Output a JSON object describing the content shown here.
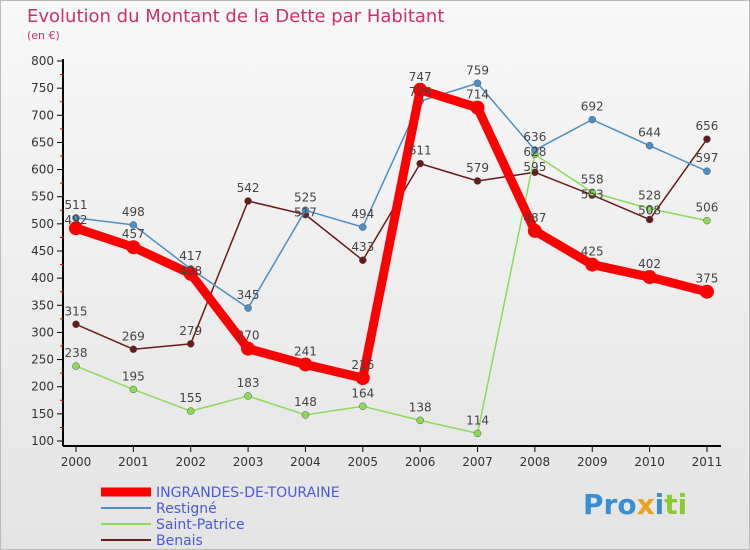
{
  "chart_data": {
    "type": "line",
    "title": "Evolution du Montant de la Dette par Habitant",
    "ylabel": "(en €)",
    "xlabel": "",
    "x": [
      "2000",
      "2001",
      "2002",
      "2003",
      "2004",
      "2005",
      "2006",
      "2007",
      "2008",
      "2009",
      "2010",
      "2011"
    ],
    "ylim": [
      100,
      800
    ],
    "yticks": [
      100,
      150,
      200,
      250,
      300,
      350,
      400,
      450,
      500,
      550,
      600,
      650,
      700,
      750,
      800
    ],
    "grid": false,
    "legend_position": "bottom-left",
    "series": [
      {
        "name": "INGRANDES-DE-TOURAINE",
        "color": "#ff0000",
        "values": [
          492,
          457,
          408,
          270,
          241,
          216,
          747,
          714,
          487,
          425,
          402,
          375
        ]
      },
      {
        "name": "Restigné",
        "color": "#4a90c8",
        "values": [
          511,
          498,
          417,
          345,
          525,
          494,
          726,
          759,
          636,
          692,
          644,
          597
        ]
      },
      {
        "name": "Saint-Patrice",
        "color": "#88dd55",
        "values": [
          238,
          195,
          155,
          183,
          148,
          164,
          138,
          114,
          628,
          558,
          528,
          506
        ]
      },
      {
        "name": "Benais",
        "color": "#6b1a1a",
        "values": [
          315,
          269,
          279,
          542,
          517,
          433,
          611,
          579,
          595,
          553,
          508,
          656
        ]
      }
    ]
  },
  "logo": "Proxiti"
}
